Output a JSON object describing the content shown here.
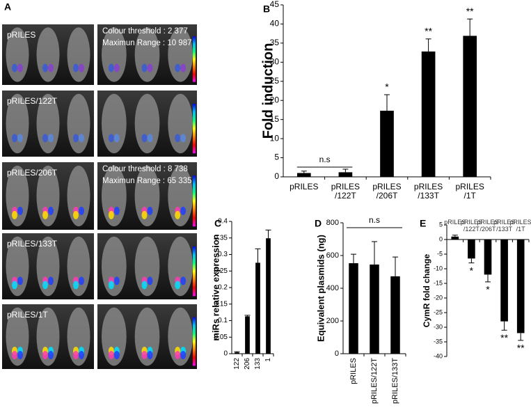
{
  "panel_a": {
    "panel_label": "A",
    "rows": [
      {
        "label": "pRILES",
        "threshold": "Colour threshold : 2 377",
        "range": "Maximun Range : 10 987"
      },
      {
        "label": "pRILES/122T"
      },
      {
        "label": "pRILES/206T",
        "threshold": "Colour threshold :  8 738",
        "range": "Maximun Range : 65 335"
      },
      {
        "label": "pRILES/133T"
      },
      {
        "label": "pRILES/1T"
      }
    ]
  },
  "chart_data": [
    {
      "type": "bar",
      "panel_label": "B",
      "ylabel": "Fold induction",
      "categories": [
        "pRILES",
        "pRILES\n/122T",
        "pRILES\n/206T",
        "pRILES\n/133T",
        "pRILES\n/1T"
      ],
      "values": [
        1,
        1.2,
        17.3,
        32.8,
        36.9
      ],
      "errors": [
        0.5,
        0.8,
        4.2,
        3.3,
        4.4
      ],
      "significance": [
        null,
        null,
        "*",
        "**",
        "**"
      ],
      "bracket_label": "n.s",
      "color": "#000000",
      "ylim": [
        0,
        45
      ],
      "yticks": [
        0,
        5,
        10,
        15,
        20,
        25,
        30,
        35,
        40,
        45
      ]
    },
    {
      "type": "bar",
      "panel_label": "C",
      "ylabel": "miRs relative expression",
      "categories": [
        "122",
        "206",
        "133",
        "1"
      ],
      "values": [
        0.004,
        0.113,
        0.275,
        0.349
      ],
      "errors": [
        0.002,
        0.003,
        0.042,
        0.025
      ],
      "color": "#000000",
      "ylim": [
        0,
        0.4
      ],
      "yticks": [
        0,
        0.05,
        0.1,
        0.15,
        0.2,
        0.25,
        0.3,
        0.35,
        0.4
      ]
    },
    {
      "type": "bar",
      "panel_label": "D",
      "ylabel": "Equivalent plasmids (ng)",
      "categories": [
        "pRILES",
        "pRILES/122T",
        "pRILES/133T"
      ],
      "values": [
        553,
        545,
        473
      ],
      "errors": [
        55,
        140,
        118
      ],
      "bracket_label": "n.s",
      "color": "#000000",
      "ylim": [
        0,
        800
      ],
      "yticks": [
        0,
        200,
        400,
        600,
        800
      ]
    },
    {
      "type": "bar",
      "panel_label": "E",
      "ylabel": "CymR fold change",
      "categories": [
        "pRILES",
        "pRILES\n/122T",
        "pRILES\n/206T",
        "pRILES\n/133T",
        "pRILES\n/1T"
      ],
      "values": [
        1,
        -6.5,
        -12,
        -28,
        -32
      ],
      "errors": [
        0.5,
        1.5,
        2.5,
        3,
        2.5
      ],
      "significance": [
        null,
        "*",
        "*",
        "**",
        "**"
      ],
      "color": "#000000",
      "ylim": [
        -40,
        5
      ],
      "yticks": [
        -40,
        -35,
        -30,
        -25,
        -20,
        -15,
        -10,
        -5,
        0,
        5
      ]
    }
  ]
}
